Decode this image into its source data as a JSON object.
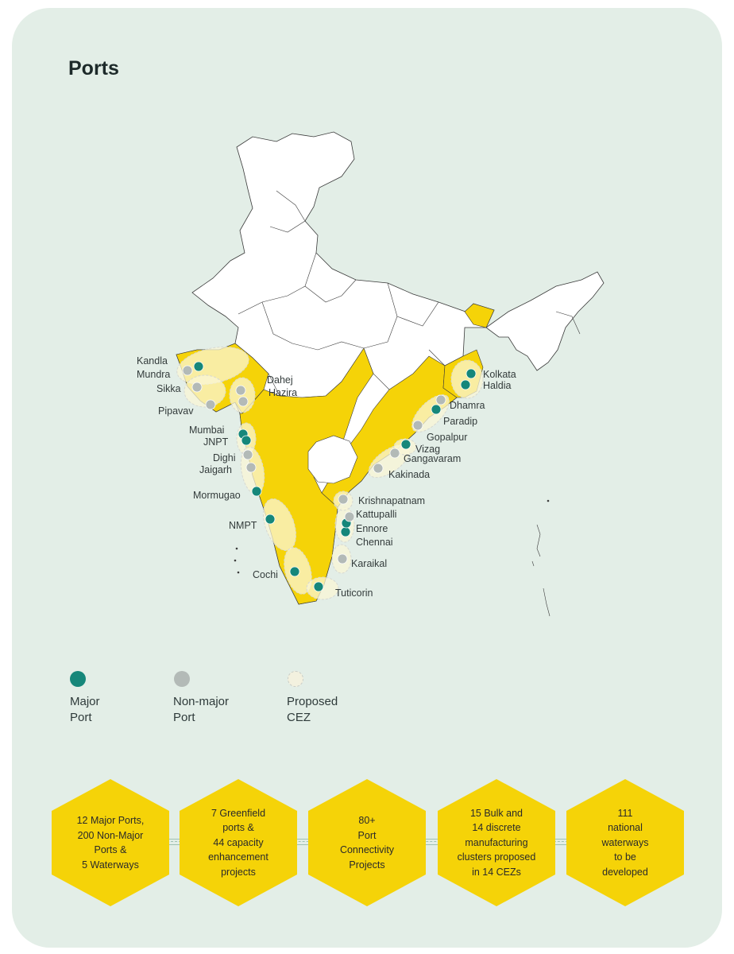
{
  "page_title": "Ports",
  "colors": {
    "background": "#e3eee7",
    "major_port": "#16877a",
    "non_major_port": "#b3bab7",
    "proposed_cez": "#f3f1df",
    "state_highlight": "#f5d308",
    "state_default": "#ffffff",
    "hexagon": "#f5d308"
  },
  "legend": [
    {
      "label": "Major\nPort",
      "kind": "major"
    },
    {
      "label": "Non-major\nPort",
      "kind": "non_major"
    },
    {
      "label": "Proposed\nCEZ",
      "kind": "cez"
    }
  ],
  "ports": [
    {
      "label": "Kandla",
      "type": "major"
    },
    {
      "label": "Mundra",
      "type": "non_major"
    },
    {
      "label": "Sikka",
      "type": "non_major"
    },
    {
      "label": "Pipavav",
      "type": "non_major"
    },
    {
      "label": "Dahej",
      "type": "non_major"
    },
    {
      "label": "Hazira",
      "type": "non_major"
    },
    {
      "label": "Mumbai",
      "type": "major"
    },
    {
      "label": "JNPT",
      "type": "major"
    },
    {
      "label": "Dighi",
      "type": "non_major"
    },
    {
      "label": "Jaigarh",
      "type": "non_major"
    },
    {
      "label": "Mormugao",
      "type": "major"
    },
    {
      "label": "NMPT",
      "type": "major"
    },
    {
      "label": "Cochi",
      "type": "major"
    },
    {
      "label": "Tuticorin",
      "type": "major"
    },
    {
      "label": "Karaikal",
      "type": "non_major"
    },
    {
      "label": "Chennai",
      "type": "major"
    },
    {
      "label": "Ennore",
      "type": "major"
    },
    {
      "label": "Kattupalli",
      "type": "non_major"
    },
    {
      "label": "Krishnapatnam",
      "type": "non_major"
    },
    {
      "label": "Kakinada",
      "type": "non_major"
    },
    {
      "label": "Gangavaram",
      "type": "non_major"
    },
    {
      "label": "Vizag",
      "type": "major"
    },
    {
      "label": "Gopalpur",
      "type": "non_major"
    },
    {
      "label": "Paradip",
      "type": "major"
    },
    {
      "label": "Dhamra",
      "type": "non_major"
    },
    {
      "label": "Haldia",
      "type": "major"
    },
    {
      "label": "Kolkata",
      "type": "major"
    }
  ],
  "stats": [
    "12 Major Ports,\n200 Non-Major\nPorts &\n5 Waterways",
    "7 Greenfield\nports &\n44 capacity\nenhancement\nprojects",
    "80+\nPort\nConnectivity\nProjects",
    "15 Bulk and\n14 discrete\nmanufacturing\nclusters proposed\nin 14 CEZs",
    "111\nnational\nwaterways\nto be\ndeveloped"
  ]
}
